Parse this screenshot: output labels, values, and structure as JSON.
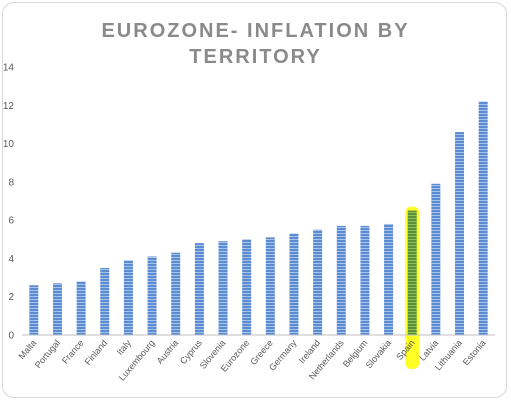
{
  "chart_data": {
    "type": "bar",
    "title_lines": [
      "EUROZONE- INFLATION BY",
      "TERRITORY"
    ],
    "categories": [
      "Malta",
      "Portugal",
      "France",
      "Finland",
      "Italy",
      "Luxembourg",
      "Austria",
      "Cyprus",
      "Slovenia",
      "Eurozone",
      "Greece",
      "Germany",
      "Ireland",
      "Netherlands",
      "Belgium",
      "Slovakia",
      "Spain",
      "Latvia",
      "Lithuania",
      "Estonia"
    ],
    "values": [
      2.6,
      2.7,
      2.8,
      3.5,
      3.9,
      4.1,
      4.3,
      4.8,
      4.9,
      5.0,
      5.1,
      5.3,
      5.5,
      5.7,
      5.7,
      5.8,
      6.5,
      7.9,
      10.6,
      12.2
    ],
    "ylim": [
      0,
      14
    ],
    "yticks": [
      "0",
      "2",
      "4",
      "6",
      "8",
      "10",
      "12",
      "14"
    ],
    "highlight": "Spain",
    "colors": {
      "bar": "#5b8bd0",
      "highlight_bar": "#5a8f3c",
      "highlighter": "#ffff00",
      "axis": "#bfbfbf"
    }
  }
}
